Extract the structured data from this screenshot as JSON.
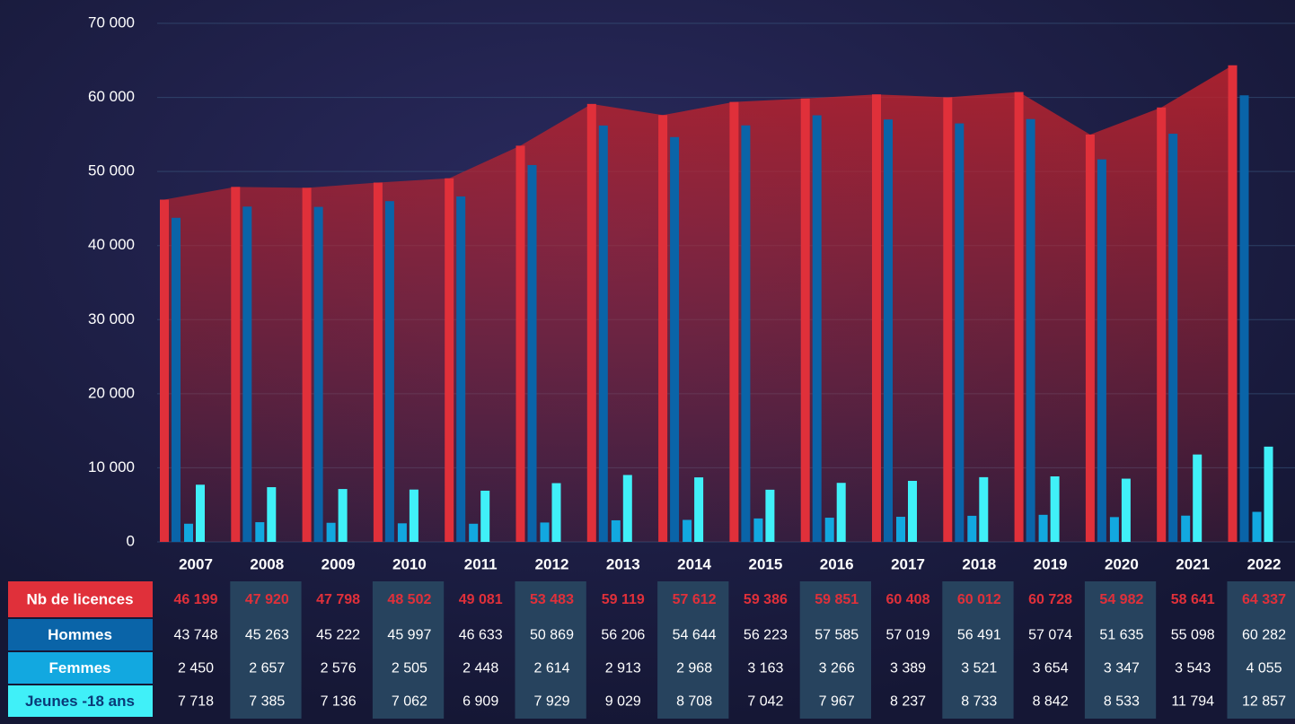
{
  "chart_data": {
    "type": "bar",
    "categories": [
      "2007",
      "2008",
      "2009",
      "2010",
      "2011",
      "2012",
      "2013",
      "2014",
      "2015",
      "2016",
      "2017",
      "2018",
      "2019",
      "2020",
      "2021",
      "2022"
    ],
    "series": [
      {
        "name": "Nb de licences",
        "color": "#e0303a",
        "area": true,
        "values": [
          46199,
          47920,
          47798,
          48502,
          49081,
          53483,
          59119,
          57612,
          59386,
          59851,
          60408,
          60012,
          60728,
          54982,
          58641,
          64337
        ],
        "value_labels": [
          "46 199",
          "47 920",
          "47 798",
          "48 502",
          "49 081",
          "53 483",
          "59 119",
          "57 612",
          "59 386",
          "59 851",
          "60 408",
          "60 012",
          "60 728",
          "54 982",
          "58 641",
          "64 337"
        ]
      },
      {
        "name": "Hommes",
        "color": "#0a64a8",
        "values": [
          43748,
          45263,
          45222,
          45997,
          46633,
          50869,
          56206,
          54644,
          56223,
          57585,
          57019,
          56491,
          57074,
          51635,
          55098,
          60282
        ],
        "value_labels": [
          "43 748",
          "45 263",
          "45 222",
          "45 997",
          "46 633",
          "50 869",
          "56 206",
          "54 644",
          "56 223",
          "57 585",
          "57 019",
          "56 491",
          "57 074",
          "51 635",
          "55 098",
          "60 282"
        ]
      },
      {
        "name": "Femmes",
        "color": "#12a8e0",
        "values": [
          2450,
          2657,
          2576,
          2505,
          2448,
          2614,
          2913,
          2968,
          3163,
          3266,
          3389,
          3521,
          3654,
          3347,
          3543,
          4055
        ],
        "value_labels": [
          "2 450",
          "2 657",
          "2 576",
          "2 505",
          "2 448",
          "2 614",
          "2 913",
          "2 968",
          "3 163",
          "3 266",
          "3 389",
          "3 521",
          "3 654",
          "3 347",
          "3 543",
          "4 055"
        ]
      },
      {
        "name": "Jeunes -18 ans",
        "color": "#40f0f8",
        "values": [
          7718,
          7385,
          7136,
          7062,
          6909,
          7929,
          9029,
          8708,
          7042,
          7967,
          8237,
          8733,
          8842,
          8533,
          11794,
          12857
        ],
        "value_labels": [
          "7 718",
          "7 385",
          "7 136",
          "7 062",
          "6 909",
          "7 929",
          "9 029",
          "8 708",
          "7 042",
          "7 967",
          "8 237",
          "8 733",
          "8 842",
          "8 533",
          "11 794",
          "12 857"
        ]
      }
    ],
    "ylim": [
      0,
      70000
    ],
    "yticks": [
      0,
      {
        "value": 10000,
        "label": "10 000"
      },
      {
        "value": 20000,
        "label": "20 000"
      },
      {
        "value": 30000,
        "label": "30 000"
      },
      {
        "value": 40000,
        "label": "40 000"
      },
      {
        "value": 50000,
        "label": "50 000"
      },
      {
        "value": 60000,
        "label": "60 000"
      },
      {
        "value": 70000,
        "label": "70 000"
      }
    ],
    "grid": true
  }
}
